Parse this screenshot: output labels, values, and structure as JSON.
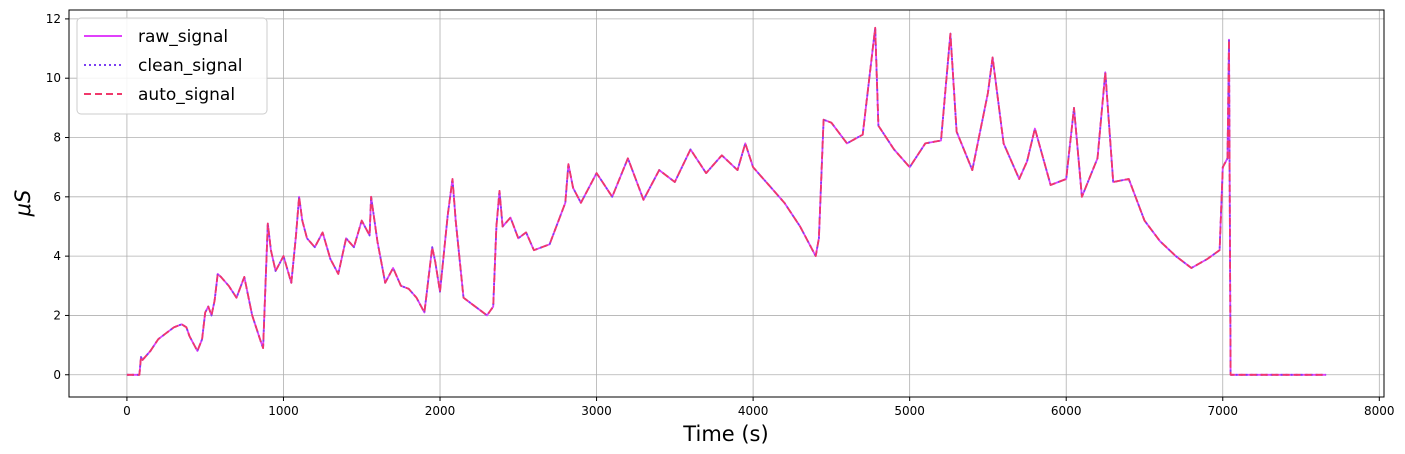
{
  "chart_data": {
    "type": "line",
    "xlabel": "Time (s)",
    "ylabel": "μS",
    "xlim": [
      -370,
      8030
    ],
    "ylim": [
      -0.75,
      12.3
    ],
    "xticks": [
      0,
      1000,
      2000,
      3000,
      4000,
      5000,
      6000,
      7000,
      8000
    ],
    "yticks": [
      0,
      2,
      4,
      6,
      8,
      10,
      12
    ],
    "grid": true,
    "legend_position": "top-left",
    "series": [
      {
        "name": "raw_signal",
        "color": "#e040fb",
        "style": "solid"
      },
      {
        "name": "clean_signal",
        "color": "#7b3ff2",
        "style": "dotted"
      },
      {
        "name": "auto_signal",
        "color": "#f0386b",
        "style": "dashed"
      }
    ],
    "x": [
      0,
      80,
      90,
      100,
      150,
      200,
      250,
      300,
      350,
      380,
      400,
      450,
      480,
      500,
      520,
      540,
      560,
      580,
      600,
      650,
      700,
      750,
      800,
      850,
      870,
      900,
      920,
      950,
      1000,
      1050,
      1080,
      1100,
      1120,
      1150,
      1200,
      1250,
      1300,
      1350,
      1400,
      1450,
      1500,
      1550,
      1560,
      1600,
      1650,
      1700,
      1750,
      1800,
      1850,
      1900,
      1950,
      1970,
      2000,
      2050,
      2080,
      2100,
      2150,
      2200,
      2250,
      2300,
      2340,
      2360,
      2380,
      2400,
      2450,
      2500,
      2550,
      2600,
      2700,
      2800,
      2820,
      2850,
      2900,
      3000,
      3100,
      3200,
      3300,
      3400,
      3500,
      3600,
      3700,
      3800,
      3900,
      3950,
      4000,
      4050,
      4100,
      4200,
      4300,
      4400,
      4420,
      4450,
      4500,
      4600,
      4700,
      4780,
      4800,
      4900,
      5000,
      5100,
      5200,
      5260,
      5300,
      5400,
      5500,
      5530,
      5600,
      5700,
      5750,
      5800,
      5900,
      6000,
      6050,
      6100,
      6200,
      6250,
      6300,
      6400,
      6500,
      6600,
      6700,
      6800,
      6900,
      6980,
      7000,
      7030,
      7040,
      7050,
      7060,
      7100,
      7300,
      7500,
      7660
    ],
    "values": [
      0,
      0,
      0.6,
      0.5,
      0.8,
      1.2,
      1.4,
      1.6,
      1.7,
      1.6,
      1.3,
      0.8,
      1.2,
      2.1,
      2.3,
      2.0,
      2.5,
      3.4,
      3.3,
      3.0,
      2.6,
      3.3,
      2.0,
      1.2,
      0.9,
      5.1,
      4.2,
      3.5,
      4.0,
      3.1,
      4.7,
      6.0,
      5.2,
      4.6,
      4.3,
      4.8,
      3.9,
      3.4,
      4.6,
      4.3,
      5.2,
      4.7,
      6.0,
      4.5,
      3.1,
      3.6,
      3.0,
      2.9,
      2.6,
      2.1,
      4.3,
      3.8,
      2.8,
      5.4,
      6.6,
      5.2,
      2.6,
      2.4,
      2.2,
      2.0,
      2.3,
      5.0,
      6.2,
      5.0,
      5.3,
      4.6,
      4.8,
      4.2,
      4.4,
      5.8,
      7.1,
      6.3,
      5.8,
      6.8,
      6.0,
      7.3,
      5.9,
      6.9,
      6.5,
      7.6,
      6.8,
      7.4,
      6.9,
      7.8,
      7.0,
      6.7,
      6.4,
      5.8,
      5.0,
      4.0,
      4.6,
      8.6,
      8.5,
      7.8,
      8.1,
      11.7,
      8.4,
      7.6,
      7.0,
      7.8,
      7.9,
      11.5,
      8.2,
      6.9,
      9.5,
      10.7,
      7.8,
      6.6,
      7.2,
      8.3,
      6.4,
      6.6,
      9.0,
      6.0,
      7.3,
      10.2,
      6.5,
      6.6,
      5.2,
      4.5,
      4.0,
      3.6,
      3.9,
      4.2,
      7.0,
      7.3,
      11.3,
      0,
      0,
      0,
      0,
      0,
      0
    ]
  }
}
